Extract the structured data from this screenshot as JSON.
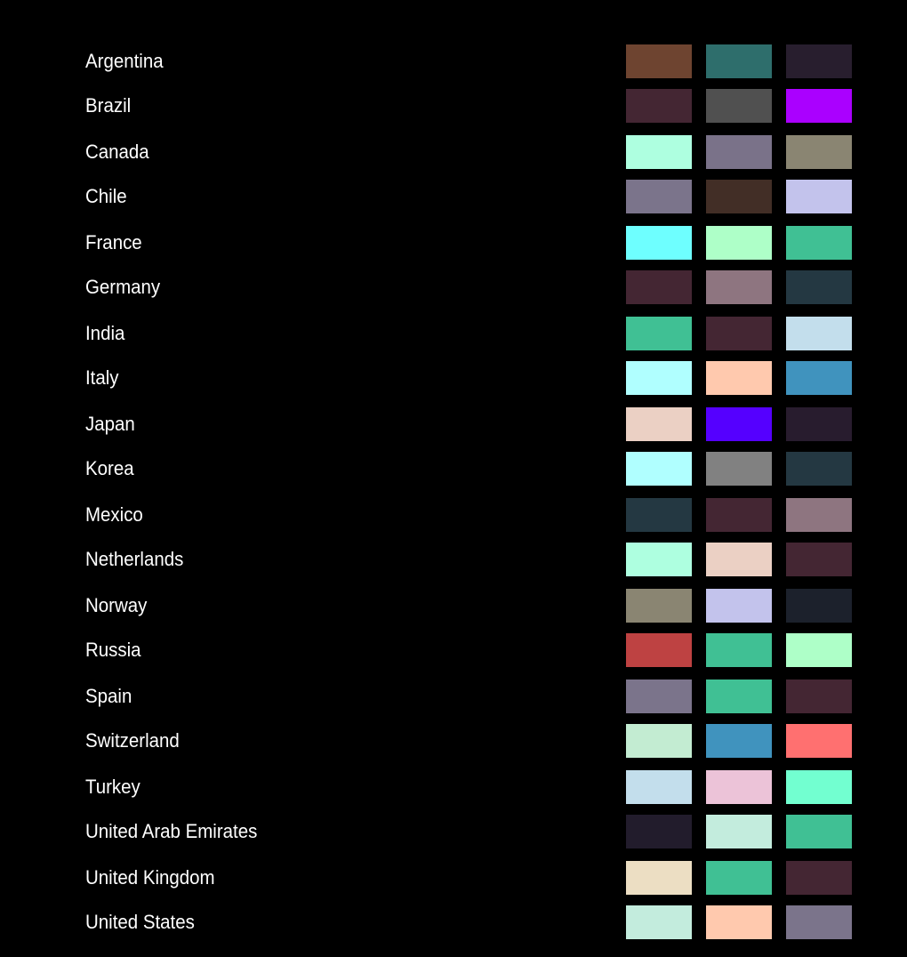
{
  "rows": [
    {
      "country": "Argentina",
      "colors": [
        "#6e4430",
        "#2e6e6c",
        "#281e2e"
      ]
    },
    {
      "country": "Brazil",
      "colors": [
        "#442633",
        "#505050",
        "#aa00ff"
      ]
    },
    {
      "country": "Canada",
      "colors": [
        "#aeffe0",
        "#7a7289",
        "#8a8572"
      ]
    },
    {
      "country": "Chile",
      "colors": [
        "#7b748b",
        "#422e26",
        "#c3c3ec"
      ]
    },
    {
      "country": "France",
      "colors": [
        "#6effff",
        "#aeffc8",
        "#40c094"
      ]
    },
    {
      "country": "Germany",
      "colors": [
        "#442633",
        "#8e7580",
        "#243842"
      ]
    },
    {
      "country": "India",
      "colors": [
        "#40c094",
        "#442633",
        "#c3deec"
      ]
    },
    {
      "country": "Italy",
      "colors": [
        "#b0ffff",
        "#ffc9ae",
        "#4093be"
      ]
    },
    {
      "country": "Japan",
      "colors": [
        "#ebd0c4",
        "#5500ff",
        "#281c2e"
      ]
    },
    {
      "country": "Korea",
      "colors": [
        "#b0ffff",
        "#818181",
        "#243842"
      ]
    },
    {
      "country": "Mexico",
      "colors": [
        "#243842",
        "#442633",
        "#8e7580"
      ]
    },
    {
      "country": "Netherlands",
      "colors": [
        "#aeffe0",
        "#ebd0c4",
        "#442633"
      ]
    },
    {
      "country": "Norway",
      "colors": [
        "#8a8572",
        "#c3c3ec",
        "#1c212c"
      ]
    },
    {
      "country": "Russia",
      "colors": [
        "#be4242",
        "#40c094",
        "#aeffc8"
      ]
    },
    {
      "country": "Spain",
      "colors": [
        "#7b748b",
        "#40c094",
        "#442633"
      ]
    },
    {
      "country": "Switzerland",
      "colors": [
        "#c3ecd2",
        "#4093be",
        "#ff7070"
      ]
    },
    {
      "country": "Turkey",
      "colors": [
        "#c3deec",
        "#ecc3d8",
        "#72ffd0"
      ]
    },
    {
      "country": "United Arab Emirates",
      "colors": [
        "#221c2c",
        "#c3ecdd",
        "#40c094"
      ]
    },
    {
      "country": "United Kingdom",
      "colors": [
        "#ecdec3",
        "#40c094",
        "#442633"
      ]
    },
    {
      "country": "United States",
      "colors": [
        "#c3ecdd",
        "#ffc9ae",
        "#7b748b"
      ]
    }
  ]
}
